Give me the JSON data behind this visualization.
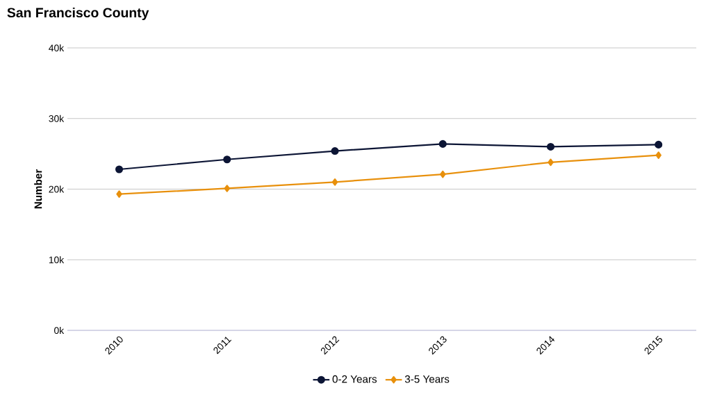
{
  "chart_data": {
    "type": "line",
    "title": "San Francisco County",
    "ylabel": "Number",
    "categories": [
      "2010",
      "2011",
      "2012",
      "2013",
      "2014",
      "2015"
    ],
    "series": [
      {
        "name": "0-2 Years",
        "color": "#0c1535",
        "marker": "circle",
        "values": [
          22800,
          24200,
          25400,
          26400,
          26000,
          26300
        ]
      },
      {
        "name": "3-5 Years",
        "color": "#e8900c",
        "marker": "diamond",
        "values": [
          19300,
          20100,
          21000,
          22100,
          23800,
          24800
        ]
      }
    ],
    "ylim": [
      0,
      40000
    ],
    "yticks": [
      {
        "value": 0,
        "label": "0k"
      },
      {
        "value": 10000,
        "label": "10k"
      },
      {
        "value": 20000,
        "label": "20k"
      },
      {
        "value": 30000,
        "label": "30k"
      },
      {
        "value": 40000,
        "label": "40k"
      }
    ],
    "grid": "y",
    "legend": "bottom",
    "line_style": "solid"
  }
}
